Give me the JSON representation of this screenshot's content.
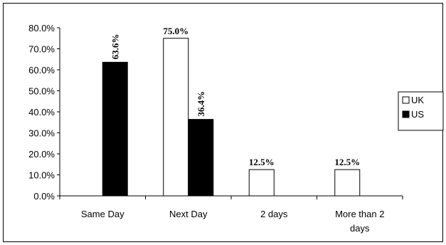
{
  "chart_data": {
    "type": "bar",
    "categories": [
      [
        "Same Day"
      ],
      [
        "Next Day"
      ],
      [
        "2 days"
      ],
      [
        "More than 2",
        "days"
      ]
    ],
    "series": [
      {
        "name": "UK",
        "values": [
          null,
          75.0,
          12.5,
          12.5
        ],
        "labels": [
          "",
          "75.0%",
          "12.5%",
          "12.5%"
        ],
        "color": "#ffffff"
      },
      {
        "name": "US",
        "values": [
          63.6,
          36.4,
          null,
          null
        ],
        "labels": [
          "63.6%",
          "36.4%",
          "",
          ""
        ],
        "color": "#000000"
      }
    ],
    "yticks": [
      "0.0%",
      "10.0%",
      "20.0%",
      "30.0%",
      "40.0%",
      "50.0%",
      "60.0%",
      "70.0%",
      "80.0%"
    ],
    "ylim": [
      0,
      80
    ],
    "legend_position": "right"
  }
}
